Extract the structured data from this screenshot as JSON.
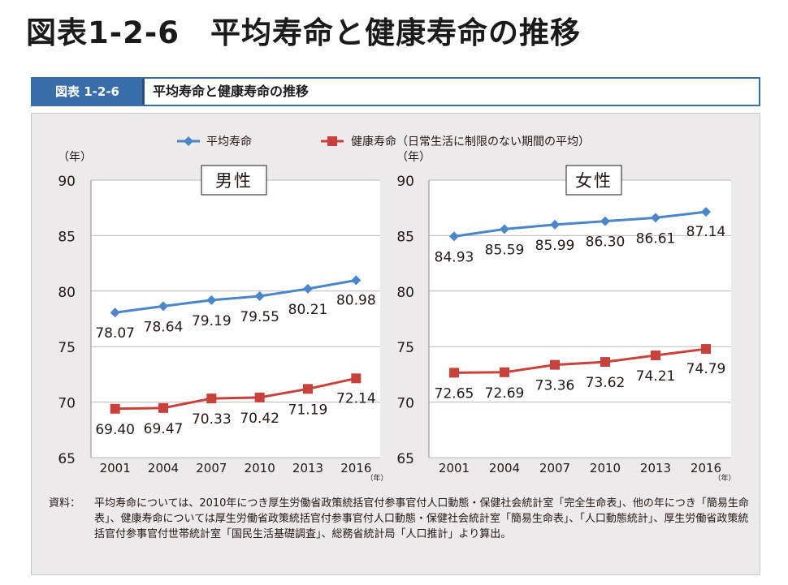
{
  "page_title": "図表1-2-6　平均寿命と健康寿命の推移",
  "figure_header": {
    "label": "図表 1-2-6",
    "title": "平均寿命と健康寿命の推移"
  },
  "legend": [
    {
      "name": "平均寿命",
      "color": "#4a86c8",
      "marker": "diamond"
    },
    {
      "name": "健康寿命（日常生活に制限のない期間の平均）",
      "color": "#c8413b",
      "marker": "square"
    }
  ],
  "chart_data": [
    {
      "type": "line",
      "title": "男性",
      "ylabel": "（年）",
      "xlabel": "（年）",
      "categories": [
        "2001",
        "2004",
        "2007",
        "2010",
        "2013",
        "2016"
      ],
      "yticks": [
        "90",
        "85",
        "80",
        "75",
        "70",
        "65"
      ],
      "ylim": [
        65,
        90
      ],
      "grid": true,
      "series": [
        {
          "name": "平均寿命",
          "values": [
            78.07,
            78.64,
            79.19,
            79.55,
            80.21,
            80.98
          ],
          "labels": [
            "78.07",
            "78.64",
            "79.19",
            "79.55",
            "80.21",
            "80.98"
          ]
        },
        {
          "name": "健康寿命（日常生活に制限のない期間の平均）",
          "values": [
            69.4,
            69.47,
            70.33,
            70.42,
            71.19,
            72.14
          ],
          "labels": [
            "69.40",
            "69.47",
            "70.33",
            "70.42",
            "71.19",
            "72.14"
          ]
        }
      ]
    },
    {
      "type": "line",
      "title": "女性",
      "ylabel": "（年）",
      "xlabel": "（年）",
      "categories": [
        "2001",
        "2004",
        "2007",
        "2010",
        "2013",
        "2016"
      ],
      "yticks": [
        "90",
        "85",
        "80",
        "75",
        "70",
        "65"
      ],
      "ylim": [
        65,
        90
      ],
      "grid": true,
      "series": [
        {
          "name": "平均寿命",
          "values": [
            84.93,
            85.59,
            85.99,
            86.3,
            86.61,
            87.14
          ],
          "labels": [
            "84.93",
            "85.59",
            "85.99",
            "86.30",
            "86.61",
            "87.14"
          ]
        },
        {
          "name": "健康寿命（日常生活に制限のない期間の平均）",
          "values": [
            72.65,
            72.69,
            73.36,
            73.62,
            74.21,
            74.79
          ],
          "labels": [
            "72.65",
            "72.69",
            "73.36",
            "73.62",
            "74.21",
            "74.79"
          ]
        }
      ]
    }
  ],
  "source_note": {
    "label": "資料：",
    "text": "平均寿命については、2010年につき厚生労働省政策統括官付参事官付人口動態・保健社会統計室「完全生命表」、他の年につき「簡易生命表」、健康寿命については厚生労働省政策統括官付参事官付人口動態・保健社会統計室「簡易生命表」、「人口動態統計」、厚生労働省政策統括官付参事官付世帯統計室「国民生活基礎調査」、総務省統計局「人口推計」より算出。"
  }
}
